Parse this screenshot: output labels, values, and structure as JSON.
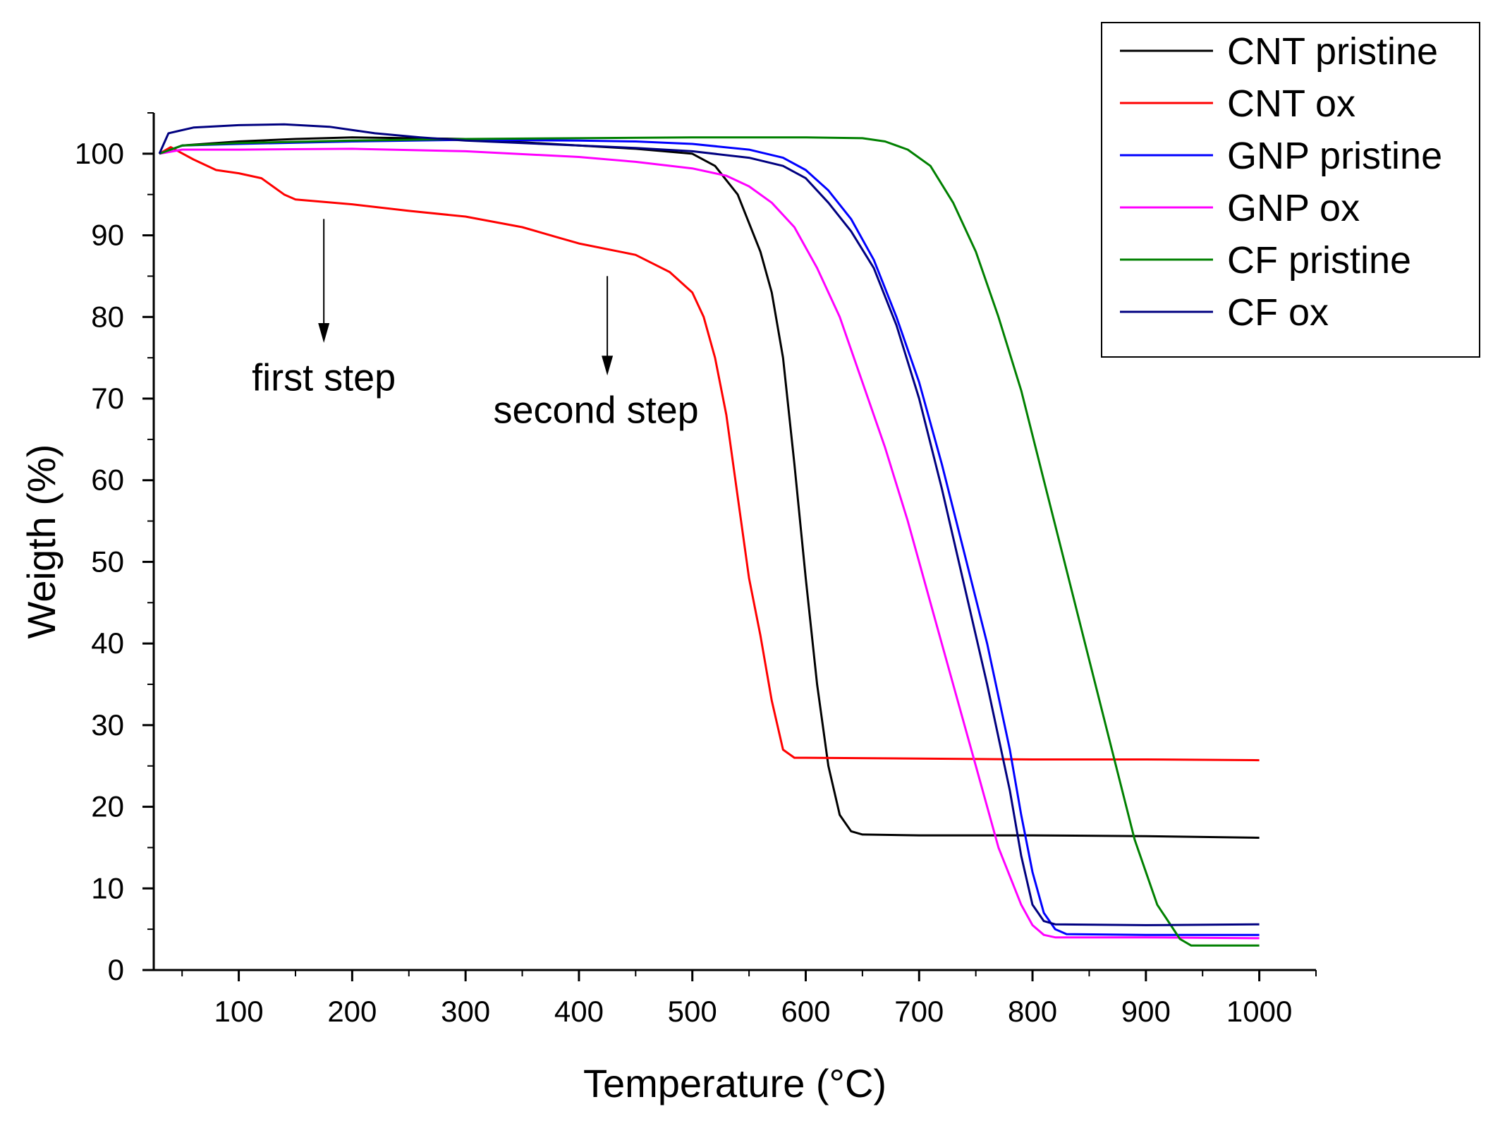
{
  "chart_data": {
    "type": "line",
    "title": "",
    "xlabel": "Temperature (°C)",
    "ylabel": "Weigth (%)",
    "xlim": [
      25,
      1050
    ],
    "ylim": [
      0,
      105
    ],
    "xticks": [
      100,
      200,
      300,
      400,
      500,
      600,
      700,
      800,
      900,
      1000
    ],
    "xtick_labels": [
      "100",
      "200",
      "300",
      "400",
      "500",
      "600",
      "700",
      "800",
      "900",
      "1000"
    ],
    "yticks": [
      0,
      10,
      20,
      30,
      40,
      50,
      60,
      70,
      80,
      90,
      100
    ],
    "ytick_labels": [
      "0",
      "10",
      "20",
      "30",
      "40",
      "50",
      "60",
      "70",
      "80",
      "90",
      "100"
    ],
    "grid": false,
    "legend_position": "top-right",
    "annotations": [
      {
        "text": "first step",
        "arrow_x": 175,
        "arrow_from_y": 92,
        "arrow_to_y": 77,
        "label_x": 175,
        "label_y": 71
      },
      {
        "text": "second step",
        "arrow_x": 425,
        "arrow_from_y": 85,
        "arrow_to_y": 73,
        "label_x": 415,
        "label_y": 67
      }
    ],
    "series": [
      {
        "name": "CNT pristine",
        "color": "#000000",
        "points": [
          [
            30,
            100
          ],
          [
            50,
            101
          ],
          [
            100,
            101.5
          ],
          [
            150,
            101.8
          ],
          [
            200,
            102
          ],
          [
            300,
            101.8
          ],
          [
            400,
            101
          ],
          [
            450,
            100.6
          ],
          [
            500,
            100
          ],
          [
            520,
            98.5
          ],
          [
            540,
            95
          ],
          [
            560,
            88
          ],
          [
            570,
            83
          ],
          [
            580,
            75
          ],
          [
            590,
            62
          ],
          [
            600,
            48
          ],
          [
            610,
            35
          ],
          [
            620,
            25
          ],
          [
            630,
            19
          ],
          [
            640,
            17
          ],
          [
            650,
            16.6
          ],
          [
            700,
            16.5
          ],
          [
            800,
            16.5
          ],
          [
            900,
            16.4
          ],
          [
            1000,
            16.2
          ]
        ]
      },
      {
        "name": "CNT ox",
        "color": "#ff0000",
        "points": [
          [
            30,
            100
          ],
          [
            40,
            100.8
          ],
          [
            60,
            99.3
          ],
          [
            80,
            98
          ],
          [
            100,
            97.6
          ],
          [
            120,
            97
          ],
          [
            140,
            95
          ],
          [
            150,
            94.4
          ],
          [
            200,
            93.8
          ],
          [
            250,
            93
          ],
          [
            300,
            92.3
          ],
          [
            350,
            91
          ],
          [
            380,
            89.8
          ],
          [
            400,
            89
          ],
          [
            450,
            87.6
          ],
          [
            480,
            85.5
          ],
          [
            500,
            83
          ],
          [
            510,
            80
          ],
          [
            520,
            75
          ],
          [
            530,
            68
          ],
          [
            540,
            58
          ],
          [
            550,
            48
          ],
          [
            560,
            41
          ],
          [
            570,
            33
          ],
          [
            580,
            27
          ],
          [
            590,
            26
          ],
          [
            600,
            26
          ],
          [
            700,
            25.9
          ],
          [
            800,
            25.8
          ],
          [
            900,
            25.8
          ],
          [
            1000,
            25.7
          ]
        ]
      },
      {
        "name": "GNP pristine",
        "color": "#0000ff",
        "points": [
          [
            30,
            100
          ],
          [
            50,
            101
          ],
          [
            100,
            101.2
          ],
          [
            200,
            101.5
          ],
          [
            300,
            101.7
          ],
          [
            400,
            101.6
          ],
          [
            450,
            101.5
          ],
          [
            500,
            101.2
          ],
          [
            550,
            100.5
          ],
          [
            580,
            99.5
          ],
          [
            600,
            98
          ],
          [
            620,
            95.5
          ],
          [
            640,
            92
          ],
          [
            660,
            87
          ],
          [
            680,
            80
          ],
          [
            700,
            72
          ],
          [
            720,
            62
          ],
          [
            740,
            51
          ],
          [
            760,
            40
          ],
          [
            780,
            27
          ],
          [
            790,
            19
          ],
          [
            800,
            12
          ],
          [
            810,
            7
          ],
          [
            820,
            5
          ],
          [
            830,
            4.4
          ],
          [
            900,
            4.3
          ],
          [
            1000,
            4.3
          ]
        ]
      },
      {
        "name": "GNP ox",
        "color": "#ff00ff",
        "points": [
          [
            30,
            100
          ],
          [
            50,
            100.5
          ],
          [
            100,
            100.5
          ],
          [
            200,
            100.6
          ],
          [
            300,
            100.3
          ],
          [
            400,
            99.6
          ],
          [
            450,
            99
          ],
          [
            500,
            98.2
          ],
          [
            530,
            97.3
          ],
          [
            550,
            96
          ],
          [
            570,
            94
          ],
          [
            590,
            91
          ],
          [
            610,
            86
          ],
          [
            630,
            80
          ],
          [
            650,
            72
          ],
          [
            670,
            64
          ],
          [
            690,
            55
          ],
          [
            710,
            45
          ],
          [
            730,
            35
          ],
          [
            750,
            25
          ],
          [
            770,
            15
          ],
          [
            790,
            8
          ],
          [
            800,
            5.5
          ],
          [
            810,
            4.3
          ],
          [
            820,
            4
          ],
          [
            900,
            4
          ],
          [
            1000,
            3.9
          ]
        ]
      },
      {
        "name": "CF pristine",
        "color": "#008000",
        "points": [
          [
            30,
            100
          ],
          [
            50,
            101
          ],
          [
            100,
            101.3
          ],
          [
            200,
            101.6
          ],
          [
            300,
            101.8
          ],
          [
            400,
            101.9
          ],
          [
            500,
            102
          ],
          [
            600,
            102
          ],
          [
            650,
            101.9
          ],
          [
            670,
            101.5
          ],
          [
            690,
            100.5
          ],
          [
            710,
            98.5
          ],
          [
            730,
            94
          ],
          [
            750,
            88
          ],
          [
            770,
            80
          ],
          [
            790,
            71
          ],
          [
            810,
            60
          ],
          [
            830,
            49
          ],
          [
            850,
            38
          ],
          [
            870,
            27
          ],
          [
            890,
            16
          ],
          [
            910,
            8
          ],
          [
            930,
            3.8
          ],
          [
            940,
            3
          ],
          [
            960,
            3
          ],
          [
            1000,
            3
          ]
        ]
      },
      {
        "name": "CF ox",
        "color": "#000080",
        "points": [
          [
            30,
            100
          ],
          [
            38,
            102.5
          ],
          [
            60,
            103.2
          ],
          [
            100,
            103.5
          ],
          [
            140,
            103.6
          ],
          [
            180,
            103.3
          ],
          [
            220,
            102.5
          ],
          [
            260,
            102
          ],
          [
            300,
            101.6
          ],
          [
            350,
            101.3
          ],
          [
            400,
            101
          ],
          [
            450,
            100.7
          ],
          [
            500,
            100.3
          ],
          [
            550,
            99.5
          ],
          [
            580,
            98.5
          ],
          [
            600,
            97
          ],
          [
            620,
            94
          ],
          [
            640,
            90.5
          ],
          [
            660,
            86
          ],
          [
            680,
            79
          ],
          [
            700,
            70
          ],
          [
            720,
            59
          ],
          [
            740,
            47
          ],
          [
            760,
            35
          ],
          [
            780,
            22
          ],
          [
            790,
            14
          ],
          [
            800,
            8
          ],
          [
            810,
            6
          ],
          [
            820,
            5.6
          ],
          [
            900,
            5.5
          ],
          [
            1000,
            5.6
          ]
        ]
      }
    ]
  }
}
